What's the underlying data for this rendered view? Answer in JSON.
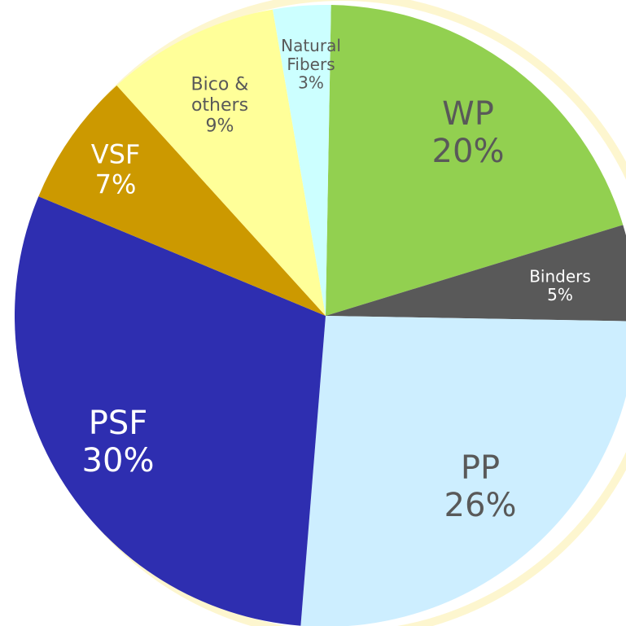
{
  "chart_data": {
    "type": "pie",
    "categories": [
      "WP",
      "Binders",
      "PP",
      "PSF",
      "VSF",
      "Bico & others",
      "Natural Fibers"
    ],
    "values": [
      20,
      5,
      26,
      30,
      7,
      9,
      3
    ],
    "value_labels": [
      "20%",
      "5%",
      "26%",
      "30%",
      "7%",
      "9%",
      "3%"
    ],
    "colors": [
      "#92d050",
      "#595959",
      "#cdeeff",
      "#2e2eb0",
      "#cc9900",
      "#ffff99",
      "#ccffff"
    ]
  }
}
